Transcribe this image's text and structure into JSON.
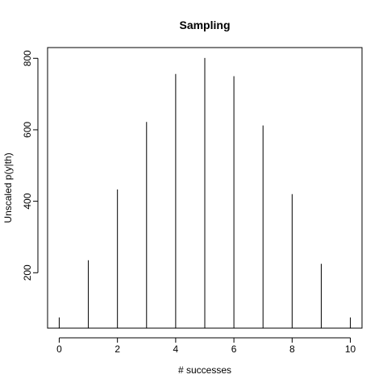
{
  "chart_data": {
    "type": "bar",
    "style": "vertical-spikes",
    "title": "Sampling",
    "xlabel": "# successes",
    "ylabel": "Unscaled p(y|th)",
    "x": [
      0,
      1,
      2,
      3,
      4,
      5,
      6,
      7,
      8,
      9,
      10
    ],
    "values": [
      75,
      235,
      433,
      622,
      756,
      801,
      750,
      612,
      420,
      225,
      75
    ],
    "xlim": [
      -0.4,
      10.4
    ],
    "ylim": [
      45,
      830
    ],
    "xticks": [
      0,
      2,
      4,
      6,
      8,
      10
    ],
    "yticks": [
      200,
      400,
      600,
      800
    ],
    "xtick_labels": [
      "0",
      "2",
      "4",
      "6",
      "8",
      "10"
    ],
    "ytick_labels": [
      "200",
      "400",
      "600",
      "800"
    ],
    "grid": false,
    "legend": "none",
    "colors": {
      "bars": "#000000",
      "axes": "#000000",
      "background": "#ffffff"
    }
  }
}
